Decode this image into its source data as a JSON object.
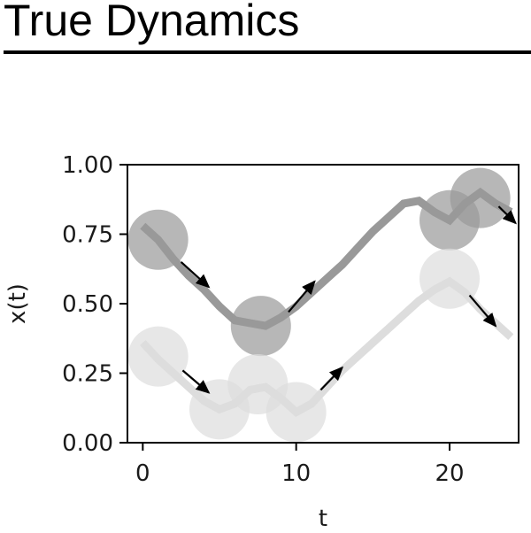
{
  "page": {
    "title": "True Dynamics"
  },
  "chart_data": {
    "type": "line",
    "title": "",
    "xlabel": "t",
    "ylabel": "x(t)",
    "xlim": [
      -1,
      24.5
    ],
    "ylim": [
      0,
      1
    ],
    "x_ticks": [
      0,
      10,
      20
    ],
    "x_tick_labels": [
      "0",
      "10",
      "20"
    ],
    "y_ticks": [
      0,
      0.25,
      0.5,
      0.75,
      1
    ],
    "y_tick_labels": [
      "0.00",
      "0.25",
      "0.50",
      "0.75",
      "1.00"
    ],
    "grid": false,
    "legend": "none",
    "series": [
      {
        "color": "#999999",
        "x": [
          0,
          1,
          2,
          3,
          4,
          5,
          6,
          7,
          8,
          9,
          10,
          11,
          12,
          13,
          14,
          15,
          16,
          17,
          18,
          19,
          20,
          21,
          22,
          23,
          24
        ],
        "y": [
          0.78,
          0.73,
          0.66,
          0.6,
          0.55,
          0.49,
          0.44,
          0.43,
          0.42,
          0.45,
          0.49,
          0.54,
          0.59,
          0.64,
          0.7,
          0.76,
          0.81,
          0.86,
          0.87,
          0.83,
          0.8,
          0.86,
          0.9,
          0.86,
          0.83
        ],
        "markers": [
          {
            "x": 1,
            "y": 0.73
          },
          {
            "x": 7.7,
            "y": 0.42
          },
          {
            "x": 20,
            "y": 0.8
          },
          {
            "x": 22,
            "y": 0.88
          }
        ],
        "arrows": [
          {
            "x1": 2.5,
            "y1": 0.65,
            "x2": 4.3,
            "y2": 0.56
          },
          {
            "x1": 9.5,
            "y1": 0.47,
            "x2": 11.2,
            "y2": 0.58
          },
          {
            "x1": 23.2,
            "y1": 0.85,
            "x2": 24.3,
            "y2": 0.79
          }
        ]
      },
      {
        "color": "#dddddd",
        "x": [
          0,
          1,
          2,
          3,
          4,
          5,
          6,
          7,
          8,
          9,
          10,
          11,
          12,
          13,
          14,
          15,
          16,
          17,
          18,
          19,
          20,
          21,
          22,
          23,
          24
        ],
        "y": [
          0.36,
          0.3,
          0.25,
          0.2,
          0.15,
          0.12,
          0.14,
          0.19,
          0.2,
          0.16,
          0.11,
          0.14,
          0.2,
          0.26,
          0.31,
          0.36,
          0.41,
          0.46,
          0.51,
          0.55,
          0.58,
          0.54,
          0.48,
          0.43,
          0.38
        ],
        "markers": [
          {
            "x": 1,
            "y": 0.31
          },
          {
            "x": 5,
            "y": 0.12
          },
          {
            "x": 7.5,
            "y": 0.21
          },
          {
            "x": 10,
            "y": 0.11
          },
          {
            "x": 20,
            "y": 0.59
          }
        ],
        "arrows": [
          {
            "x1": 2.6,
            "y1": 0.26,
            "x2": 4.3,
            "y2": 0.18
          },
          {
            "x1": 11.6,
            "y1": 0.19,
            "x2": 13.0,
            "y2": 0.27
          },
          {
            "x1": 21.3,
            "y1": 0.53,
            "x2": 23.0,
            "y2": 0.42
          }
        ]
      }
    ]
  }
}
